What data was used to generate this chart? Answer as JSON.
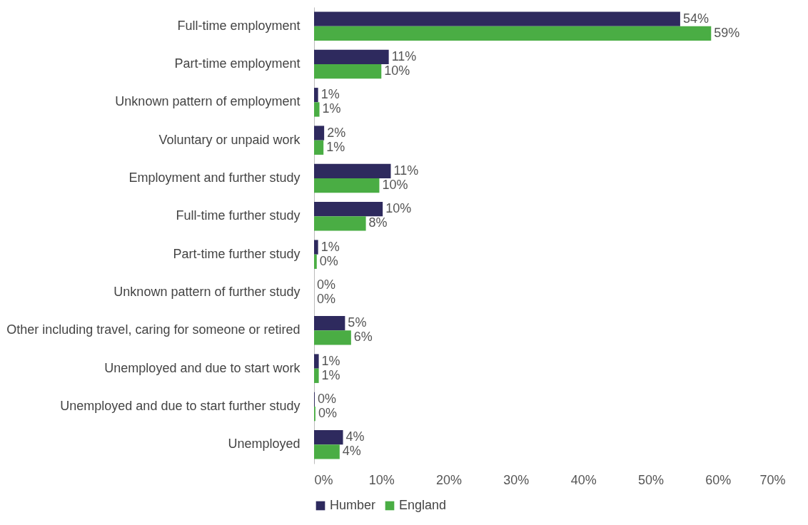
{
  "chart_data": {
    "type": "bar",
    "orientation": "horizontal",
    "categories": [
      "Full-time employment",
      "Part-time employment",
      "Unknown pattern of employment",
      "Voluntary or unpaid work",
      "Employment and further study",
      "Full-time further study",
      "Part-time further study",
      "Unknown pattern of further study",
      "Other including travel, caring for someone or retired",
      "Unemployed and due to start work",
      "Unemployed and due to start further study",
      "Unemployed"
    ],
    "series": [
      {
        "name": "Humber",
        "color": "#2e2a5e",
        "values": [
          54.4,
          11.1,
          0.6,
          1.5,
          11.4,
          10.2,
          0.6,
          0,
          4.6,
          0.7,
          0.1,
          4.3
        ],
        "value_labels": [
          "54%",
          "11%",
          "1%",
          "2%",
          "11%",
          "10%",
          "1%",
          "0%",
          "5%",
          "1%",
          "0%",
          "4%"
        ]
      },
      {
        "name": "England",
        "color": "#4aad44",
        "values": [
          59.0,
          10.0,
          0.8,
          1.4,
          9.7,
          7.7,
          0.4,
          0,
          5.5,
          0.7,
          0.2,
          3.8
        ],
        "value_labels": [
          "59%",
          "10%",
          "1%",
          "1%",
          "10%",
          "8%",
          "0%",
          "0%",
          "6%",
          "1%",
          "0%",
          "4%"
        ]
      }
    ],
    "xlim": [
      0,
      70
    ],
    "xticks": [
      {
        "value": 0,
        "label": "0%"
      },
      {
        "value": 10,
        "label": "10%"
      },
      {
        "value": 20,
        "label": "20%"
      },
      {
        "value": 30,
        "label": "30%"
      },
      {
        "value": 40,
        "label": "40%"
      },
      {
        "value": 50,
        "label": "50%"
      },
      {
        "value": 60,
        "label": "60%"
      },
      {
        "value": 70,
        "label": "70%"
      }
    ],
    "grid": false,
    "legend": "bottom"
  }
}
